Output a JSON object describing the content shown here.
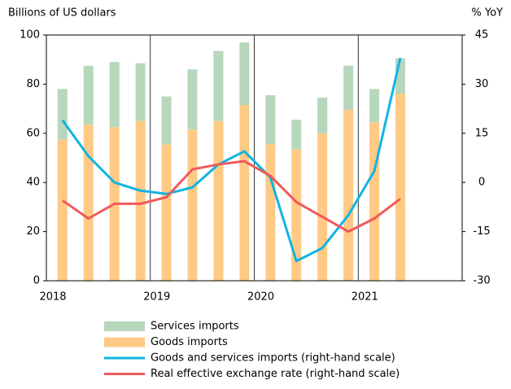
{
  "chart_data": {
    "type": "bar",
    "y_label": "Billions of US dollars",
    "y2_label": "% YoY",
    "categories": [
      "2018",
      null,
      null,
      null,
      "2019",
      null,
      null,
      null,
      "2020",
      null,
      null,
      null,
      "2021",
      null
    ],
    "ylim": [
      0,
      100
    ],
    "yticks": [
      0,
      20,
      40,
      60,
      80,
      100
    ],
    "y2lim": [
      -30,
      45
    ],
    "y2ticks": [
      -30,
      -15,
      0,
      15,
      30,
      45
    ],
    "series": [
      {
        "name": "Services imports",
        "type": "bar",
        "color": "#b7d7ba",
        "values": [
          20.5,
          24,
          26.5,
          23.5,
          19.5,
          24.5,
          28.5,
          25.5,
          20,
          12,
          14.5,
          18,
          13.5,
          14.5
        ]
      },
      {
        "name": "Goods imports",
        "type": "bar",
        "color": "#ffca85",
        "values": [
          57.5,
          63.5,
          62.5,
          65,
          55.5,
          61.5,
          65,
          71.5,
          55.5,
          53.5,
          60,
          69.5,
          64.5,
          76
        ]
      },
      {
        "name": "Goods and services imports (right-hand scale)",
        "type": "line",
        "axis": "y2",
        "color": "#12b4e2",
        "values": [
          19,
          8,
          0,
          -2.5,
          -3.5,
          -1.5,
          5.5,
          9.5,
          1.5,
          -24,
          -20,
          -10,
          3.5,
          38
        ]
      },
      {
        "name": "Real effective exchange rate (right-hand scale)",
        "type": "line",
        "axis": "y2",
        "color": "#ef5a5c",
        "values": [
          -5.5,
          -11,
          -6.5,
          -6.5,
          -4.5,
          4,
          5.5,
          6.5,
          2,
          -6,
          -10.5,
          -15,
          -11,
          -5
        ]
      }
    ]
  }
}
